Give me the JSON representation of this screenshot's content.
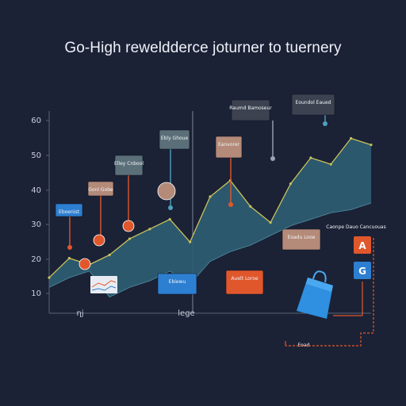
{
  "title": "Go-High reweldderce joturner to tuernery",
  "colors": {
    "background": "#1b2236",
    "area_fill": "#2f5e73",
    "area_stroke": "#c9c25a",
    "orange": "#e0572c",
    "blue": "#2d7fd1",
    "tan": "#b48a78"
  },
  "chart_data": {
    "type": "area",
    "title": "Go-High reweldderce joturner to tuernery",
    "xlabel": "",
    "ylabel": "",
    "y_tick_labels": [
      "10",
      "20",
      "30",
      "40",
      "50",
      "60"
    ],
    "x_tick_labels": [
      "ηj",
      "lege"
    ],
    "series": [
      {
        "points_upper": [
          [
            0,
            16
          ],
          [
            1,
            22
          ],
          [
            2,
            20
          ],
          [
            3,
            23
          ],
          [
            4,
            28
          ],
          [
            5,
            31
          ],
          [
            6,
            34
          ],
          [
            7,
            27
          ],
          [
            8,
            41
          ],
          [
            9,
            46
          ],
          [
            10,
            38
          ],
          [
            11,
            33
          ],
          [
            12,
            45
          ],
          [
            13,
            53
          ],
          [
            14,
            51
          ],
          [
            15,
            59
          ],
          [
            16,
            57
          ]
        ],
        "points_lower": [
          [
            0,
            13
          ],
          [
            1,
            16
          ],
          [
            2,
            18
          ],
          [
            3,
            10
          ],
          [
            4,
            13
          ],
          [
            5,
            15
          ],
          [
            6,
            18
          ],
          [
            7,
            14
          ],
          [
            8,
            21
          ],
          [
            9,
            24
          ],
          [
            10,
            26
          ],
          [
            11,
            29
          ],
          [
            12,
            32
          ],
          [
            13,
            34
          ],
          [
            14,
            36
          ],
          [
            15,
            37
          ],
          [
            16,
            39
          ]
        ]
      }
    ],
    "callouts": [
      {
        "text": "Eboenist",
        "color": "#2d7fd1"
      },
      {
        "text": "Gonl Gobe",
        "color": "#b48a78"
      },
      {
        "text": "Elley Cnbool",
        "color": "#5b6f78"
      },
      {
        "text": "Ebly Ghoue",
        "color": "#5b6f78"
      },
      {
        "text": "Eanvorer",
        "color": "#b48a78"
      },
      {
        "text": "Raumd Bamoseur",
        "color": "#3c4250"
      },
      {
        "text": "Eoundol Eaued",
        "color": "#3c4250"
      },
      {
        "text": "Eoadu Looe",
        "color": "#b48a78"
      },
      {
        "text": "Ebiewu",
        "color": "#2d7fd1"
      },
      {
        "text": "Auelt Loroe",
        "color": "#e0572c"
      },
      {
        "text": "Caonpe Dauo Cancuouas",
        "color": "none"
      },
      {
        "text": "Eoad",
        "color": "none"
      }
    ]
  }
}
